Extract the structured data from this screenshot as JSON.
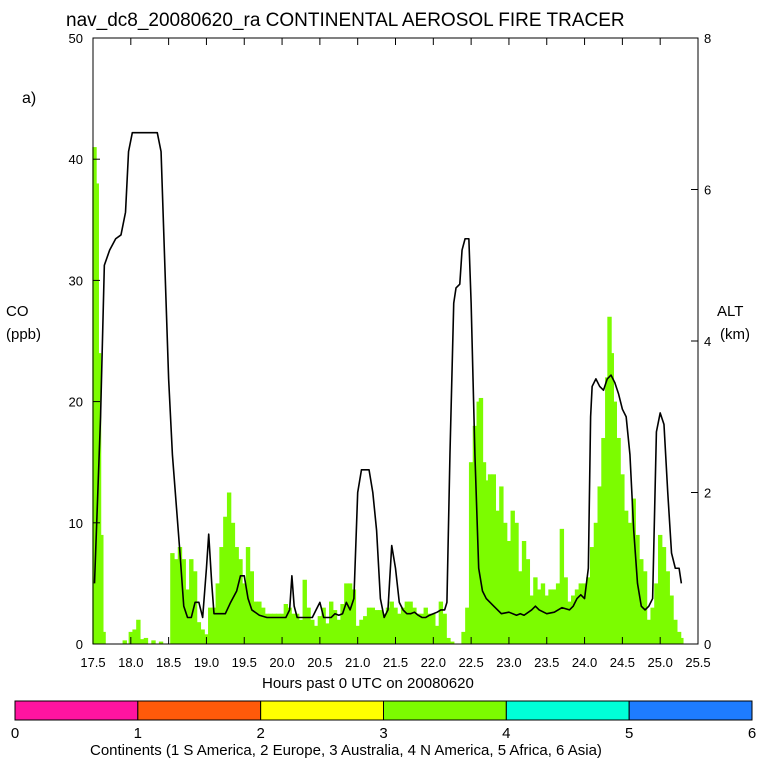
{
  "chart_data": {
    "type": "bar",
    "title": "nav_dc8_20080620_ra CONTINENTAL AEROSOL FIRE TRACER",
    "panel_label": "a)",
    "xlabel": "Hours past 0 UTC on 20080620",
    "ylabel_left": [
      "CO",
      "(ppb)"
    ],
    "ylabel_right": [
      "ALT",
      "(km)"
    ],
    "xlim": [
      17.5,
      25.5
    ],
    "ylim_left": [
      0,
      50
    ],
    "ylim_right": [
      0,
      8
    ],
    "x_ticks": [
      "17.5",
      "18.0",
      "18.5",
      "19.0",
      "19.5",
      "20.0",
      "20.5",
      "21.0",
      "21.5",
      "22.0",
      "22.5",
      "23.0",
      "23.5",
      "24.0",
      "24.5",
      "25.0",
      "25.5"
    ],
    "y_ticks_left": [
      "0",
      "10",
      "20",
      "30",
      "40",
      "50"
    ],
    "y_ticks_right": [
      "0",
      "2",
      "4",
      "6",
      "8"
    ],
    "bar_color": "#7CFC00",
    "series": [
      {
        "type": "bar",
        "continent": 4,
        "points": [
          [
            17.52,
            41
          ],
          [
            17.55,
            38
          ],
          [
            17.58,
            24
          ],
          [
            17.61,
            9
          ],
          [
            17.64,
            1
          ],
          [
            17.7,
            0
          ],
          [
            17.8,
            0
          ],
          [
            17.92,
            0.3
          ],
          [
            18.0,
            1
          ],
          [
            18.05,
            1.2
          ],
          [
            18.1,
            2
          ],
          [
            18.15,
            0.4
          ],
          [
            18.2,
            0.5
          ],
          [
            18.3,
            0.3
          ],
          [
            18.4,
            0.2
          ],
          [
            18.55,
            7.5
          ],
          [
            18.6,
            7
          ],
          [
            18.65,
            8
          ],
          [
            18.7,
            7
          ],
          [
            18.75,
            4.5
          ],
          [
            18.8,
            7
          ],
          [
            18.85,
            6
          ],
          [
            18.9,
            1.8
          ],
          [
            18.95,
            1.2
          ],
          [
            19.0,
            0.8
          ],
          [
            19.05,
            3
          ],
          [
            19.1,
            3
          ],
          [
            19.15,
            5
          ],
          [
            19.2,
            8
          ],
          [
            19.25,
            10.5
          ],
          [
            19.3,
            12.5
          ],
          [
            19.35,
            10
          ],
          [
            19.4,
            8
          ],
          [
            19.45,
            7
          ],
          [
            19.5,
            5
          ],
          [
            19.55,
            8
          ],
          [
            19.6,
            6
          ],
          [
            19.65,
            3.5
          ],
          [
            19.7,
            3.5
          ],
          [
            19.75,
            3
          ],
          [
            19.8,
            2.5
          ],
          [
            19.85,
            2.5
          ],
          [
            19.9,
            2.5
          ],
          [
            19.95,
            2.5
          ],
          [
            20.0,
            2.5
          ],
          [
            20.05,
            3.3
          ],
          [
            20.1,
            3
          ],
          [
            20.15,
            2.5
          ],
          [
            20.2,
            2.5
          ],
          [
            20.25,
            2
          ],
          [
            20.3,
            5.3
          ],
          [
            20.35,
            3
          ],
          [
            20.4,
            2
          ],
          [
            20.45,
            1.5
          ],
          [
            20.5,
            2.3
          ],
          [
            20.55,
            3
          ],
          [
            20.6,
            1.7
          ],
          [
            20.65,
            3.5
          ],
          [
            20.7,
            2.8
          ],
          [
            20.75,
            2
          ],
          [
            20.8,
            3.3
          ],
          [
            20.85,
            5
          ],
          [
            20.9,
            5
          ],
          [
            20.95,
            4.5
          ],
          [
            21.0,
            1.5
          ],
          [
            21.05,
            2
          ],
          [
            21.1,
            2.3
          ],
          [
            21.15,
            3
          ],
          [
            21.2,
            3
          ],
          [
            21.25,
            2.8
          ],
          [
            21.3,
            2.8
          ],
          [
            21.35,
            2.5
          ],
          [
            21.4,
            3
          ],
          [
            21.45,
            3.5
          ],
          [
            21.5,
            3
          ],
          [
            21.55,
            2.5
          ],
          [
            21.6,
            3
          ],
          [
            21.65,
            3.5
          ],
          [
            21.7,
            3.5
          ],
          [
            21.75,
            3
          ],
          [
            21.8,
            2.5
          ],
          [
            21.85,
            2.5
          ],
          [
            21.9,
            3
          ],
          [
            21.95,
            2.5
          ],
          [
            22.0,
            2.5
          ],
          [
            22.05,
            1.5
          ],
          [
            22.1,
            3.5
          ],
          [
            22.15,
            2.5
          ],
          [
            22.2,
            0.5
          ],
          [
            22.25,
            0.2
          ],
          [
            22.3,
            0
          ],
          [
            22.4,
            1
          ],
          [
            22.45,
            3
          ],
          [
            22.5,
            15
          ],
          [
            22.55,
            18
          ],
          [
            22.6,
            20
          ],
          [
            22.63,
            20.3
          ],
          [
            22.67,
            15
          ],
          [
            22.7,
            13.5
          ],
          [
            22.75,
            14
          ],
          [
            22.8,
            14
          ],
          [
            22.85,
            11
          ],
          [
            22.9,
            13
          ],
          [
            22.95,
            10
          ],
          [
            23.0,
            8.5
          ],
          [
            23.05,
            11
          ],
          [
            23.1,
            10
          ],
          [
            23.15,
            6
          ],
          [
            23.2,
            8.5
          ],
          [
            23.25,
            7
          ],
          [
            23.3,
            4
          ],
          [
            23.35,
            5.5
          ],
          [
            23.4,
            4.5
          ],
          [
            23.45,
            5
          ],
          [
            23.5,
            4
          ],
          [
            23.55,
            4.5
          ],
          [
            23.6,
            4.5
          ],
          [
            23.65,
            5
          ],
          [
            23.7,
            9.5
          ],
          [
            23.75,
            5.5
          ],
          [
            23.8,
            3.5
          ],
          [
            23.85,
            4
          ],
          [
            23.9,
            4.5
          ],
          [
            23.95,
            5
          ],
          [
            24.0,
            5
          ],
          [
            24.05,
            5.5
          ],
          [
            24.1,
            8
          ],
          [
            24.15,
            10
          ],
          [
            24.2,
            13
          ],
          [
            24.25,
            17
          ],
          [
            24.3,
            22
          ],
          [
            24.33,
            27
          ],
          [
            24.36,
            24
          ],
          [
            24.4,
            20
          ],
          [
            24.45,
            17
          ],
          [
            24.5,
            14
          ],
          [
            24.55,
            11
          ],
          [
            24.6,
            10
          ],
          [
            24.65,
            12
          ],
          [
            24.7,
            9
          ],
          [
            24.75,
            7
          ],
          [
            24.8,
            6
          ],
          [
            24.85,
            2
          ],
          [
            24.9,
            3
          ],
          [
            24.95,
            5
          ],
          [
            25.0,
            9
          ],
          [
            25.05,
            8
          ],
          [
            25.1,
            6
          ],
          [
            25.15,
            4
          ],
          [
            25.2,
            2
          ],
          [
            25.25,
            1
          ],
          [
            25.28,
            0.5
          ]
        ]
      },
      {
        "type": "line",
        "axis": "right",
        "color": "#000000",
        "points": [
          [
            17.52,
            0.8
          ],
          [
            17.6,
            3
          ],
          [
            17.65,
            5
          ],
          [
            17.72,
            5.2
          ],
          [
            17.8,
            5.35
          ],
          [
            17.87,
            5.4
          ],
          [
            17.93,
            5.7
          ],
          [
            17.97,
            6.5
          ],
          [
            18.02,
            6.75
          ],
          [
            18.1,
            6.75
          ],
          [
            18.2,
            6.75
          ],
          [
            18.3,
            6.75
          ],
          [
            18.35,
            6.75
          ],
          [
            18.4,
            6.5
          ],
          [
            18.45,
            5
          ],
          [
            18.5,
            3.5
          ],
          [
            18.55,
            2.5
          ],
          [
            18.65,
            1.2
          ],
          [
            18.7,
            0.5
          ],
          [
            18.75,
            0.35
          ],
          [
            18.8,
            0.35
          ],
          [
            18.85,
            0.55
          ],
          [
            18.9,
            0.55
          ],
          [
            18.95,
            0.35
          ],
          [
            19.0,
            1
          ],
          [
            19.03,
            1.45
          ],
          [
            19.07,
            0.8
          ],
          [
            19.1,
            0.4
          ],
          [
            19.15,
            0.4
          ],
          [
            19.25,
            0.4
          ],
          [
            19.32,
            0.55
          ],
          [
            19.4,
            0.7
          ],
          [
            19.45,
            0.9
          ],
          [
            19.5,
            0.9
          ],
          [
            19.55,
            0.6
          ],
          [
            19.6,
            0.45
          ],
          [
            19.7,
            0.38
          ],
          [
            19.8,
            0.35
          ],
          [
            19.95,
            0.35
          ],
          [
            20.05,
            0.35
          ],
          [
            20.1,
            0.45
          ],
          [
            20.13,
            0.9
          ],
          [
            20.16,
            0.5
          ],
          [
            20.2,
            0.35
          ],
          [
            20.3,
            0.35
          ],
          [
            20.4,
            0.35
          ],
          [
            20.45,
            0.45
          ],
          [
            20.5,
            0.55
          ],
          [
            20.55,
            0.35
          ],
          [
            20.6,
            0.35
          ],
          [
            20.65,
            0.35
          ],
          [
            20.7,
            0.4
          ],
          [
            20.75,
            0.38
          ],
          [
            20.8,
            0.4
          ],
          [
            20.85,
            0.55
          ],
          [
            20.9,
            0.45
          ],
          [
            20.95,
            0.6
          ],
          [
            21.0,
            2
          ],
          [
            21.05,
            2.3
          ],
          [
            21.1,
            2.3
          ],
          [
            21.15,
            2.3
          ],
          [
            21.2,
            2
          ],
          [
            21.25,
            1.5
          ],
          [
            21.3,
            0.6
          ],
          [
            21.35,
            0.35
          ],
          [
            21.4,
            0.45
          ],
          [
            21.45,
            1.3
          ],
          [
            21.5,
            1
          ],
          [
            21.55,
            0.55
          ],
          [
            21.6,
            0.45
          ],
          [
            21.65,
            0.4
          ],
          [
            21.7,
            0.4
          ],
          [
            21.75,
            0.42
          ],
          [
            21.8,
            0.38
          ],
          [
            21.85,
            0.35
          ],
          [
            21.9,
            0.35
          ],
          [
            21.95,
            0.38
          ],
          [
            22.0,
            0.4
          ],
          [
            22.05,
            0.42
          ],
          [
            22.1,
            0.45
          ],
          [
            22.15,
            0.45
          ],
          [
            22.18,
            0.55
          ],
          [
            22.22,
            2.5
          ],
          [
            22.27,
            4.5
          ],
          [
            22.3,
            4.7
          ],
          [
            22.35,
            4.75
          ],
          [
            22.38,
            5.2
          ],
          [
            22.42,
            5.35
          ],
          [
            22.47,
            5.35
          ],
          [
            22.5,
            4.5
          ],
          [
            22.55,
            2.5
          ],
          [
            22.6,
            1
          ],
          [
            22.65,
            0.7
          ],
          [
            22.7,
            0.6
          ],
          [
            22.8,
            0.5
          ],
          [
            22.9,
            0.4
          ],
          [
            23.0,
            0.42
          ],
          [
            23.1,
            0.38
          ],
          [
            23.15,
            0.4
          ],
          [
            23.2,
            0.38
          ],
          [
            23.3,
            0.45
          ],
          [
            23.35,
            0.5
          ],
          [
            23.4,
            0.45
          ],
          [
            23.5,
            0.4
          ],
          [
            23.6,
            0.42
          ],
          [
            23.7,
            0.48
          ],
          [
            23.8,
            0.45
          ],
          [
            23.85,
            0.5
          ],
          [
            23.9,
            0.6
          ],
          [
            23.95,
            0.65
          ],
          [
            24.0,
            0.6
          ],
          [
            24.05,
            1
          ],
          [
            24.08,
            3
          ],
          [
            24.1,
            3.4
          ],
          [
            24.15,
            3.5
          ],
          [
            24.2,
            3.4
          ],
          [
            24.25,
            3.35
          ],
          [
            24.3,
            3.5
          ],
          [
            24.35,
            3.55
          ],
          [
            24.4,
            3.45
          ],
          [
            24.45,
            3.3
          ],
          [
            24.5,
            3.1
          ],
          [
            24.55,
            3
          ],
          [
            24.6,
            2.5
          ],
          [
            24.65,
            1.5
          ],
          [
            24.7,
            0.8
          ],
          [
            24.75,
            0.5
          ],
          [
            24.8,
            0.45
          ],
          [
            24.85,
            0.5
          ],
          [
            24.9,
            0.6
          ],
          [
            24.95,
            2.8
          ],
          [
            25.0,
            3.05
          ],
          [
            25.05,
            2.9
          ],
          [
            25.1,
            2
          ],
          [
            25.15,
            1.2
          ],
          [
            25.2,
            1
          ],
          [
            25.25,
            1
          ],
          [
            25.28,
            0.8
          ]
        ]
      }
    ],
    "colorbar": {
      "label": "Continents (1 S America, 2 Europe, 3 Australia, 4 N America, 5 Africa, 6 Asia)",
      "ticks": [
        "0",
        "1",
        "2",
        "3",
        "4",
        "5",
        "6"
      ],
      "colors": [
        "#FF14A0",
        "#FF5A0A",
        "#FFFF00",
        "#7CFC00",
        "#00FFD8",
        "#1E7CFF"
      ]
    }
  }
}
